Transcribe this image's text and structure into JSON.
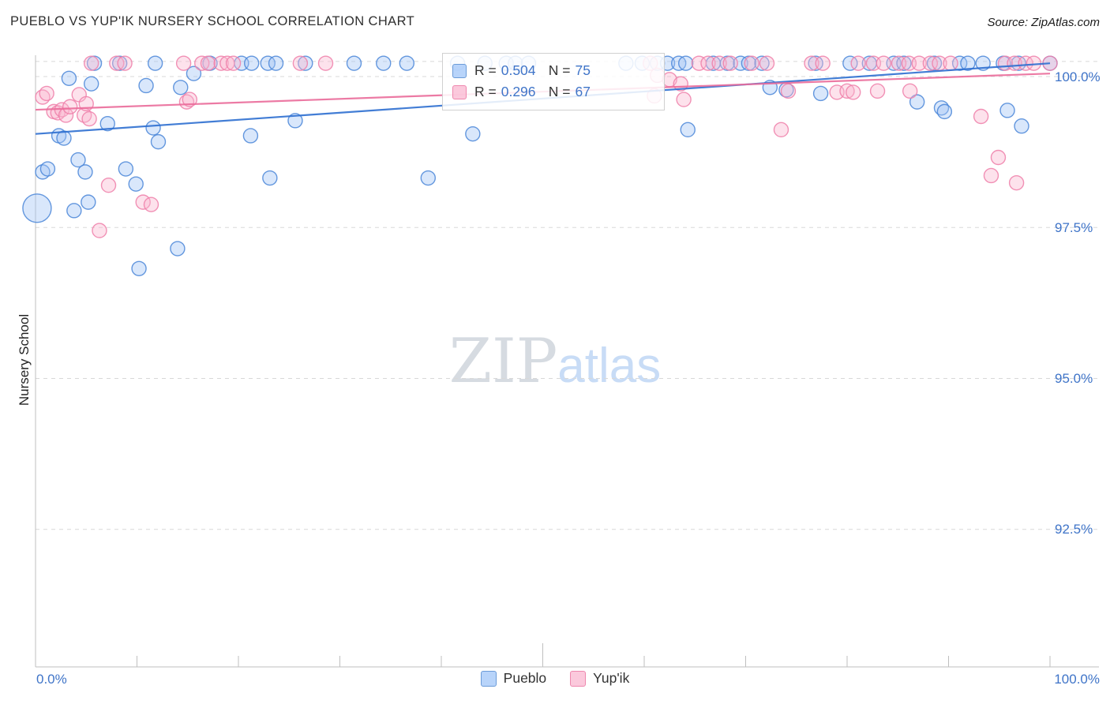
{
  "header": {
    "title": "PUEBLO VS YUP'IK NURSERY SCHOOL CORRELATION CHART",
    "source": "Source: ZipAtlas.com"
  },
  "axes": {
    "y_label": "Nursery School",
    "y_ticks": [
      "100.0%",
      "97.5%",
      "95.0%",
      "92.5%"
    ],
    "x_min_label": "0.0%",
    "x_max_label": "100.0%"
  },
  "legend_box": {
    "rows": [
      {
        "r_label": "R =",
        "r_value": "0.504",
        "n_label": "N =",
        "n_value": "75"
      },
      {
        "r_label": "R =",
        "r_value": "0.296",
        "n_label": "N =",
        "n_value": "67"
      }
    ]
  },
  "bottom_legend": {
    "pueblo": "Pueblo",
    "yupik": "Yup'ik"
  },
  "watermark": {
    "zip": "ZIP",
    "atlas": "atlas"
  },
  "colors": {
    "pueblo_fill": "#9fc3f5",
    "pueblo_stroke": "#4a86d8",
    "pueblo_line": "#2e6fd0",
    "yupik_fill": "#f9b6d0",
    "yupik_stroke": "#ee7fa9",
    "yupik_line": "#ea6c9a",
    "grid": "#d8d8d8",
    "axis": "#bfbfbf",
    "tick_label": "#3f74c8"
  },
  "chart_data": {
    "type": "scatter",
    "title": "PUEBLO VS YUP'IK NURSERY SCHOOL CORRELATION CHART",
    "xlabel": "",
    "ylabel": "Nursery School",
    "xlim": [
      0,
      100
    ],
    "ylim": [
      90.2,
      100.35
    ],
    "y_gridlines": [
      100.25,
      100.0,
      97.5,
      95.0,
      92.5
    ],
    "y_tick_values": [
      100.0,
      97.5,
      95.0,
      92.5
    ],
    "grid": "dashed-horizontal",
    "legend_position": "top-center",
    "series": [
      {
        "name": "Pueblo",
        "R": 0.504,
        "N": 75,
        "trend": {
          "x": [
            0,
            100
          ],
          "y": [
            99.05,
            100.22
          ]
        },
        "points": [
          [
            5.8,
            100.22
          ],
          [
            8.3,
            100.22
          ],
          [
            11.8,
            100.22
          ],
          [
            17.2,
            100.22
          ],
          [
            20.3,
            100.22
          ],
          [
            21.3,
            100.22
          ],
          [
            22.9,
            100.22
          ],
          [
            23.7,
            100.22
          ],
          [
            26.6,
            100.22
          ],
          [
            31.4,
            100.22
          ],
          [
            34.3,
            100.22
          ],
          [
            36.6,
            100.22
          ],
          [
            41.6,
            100.22
          ],
          [
            44.3,
            100.22
          ],
          [
            46.4,
            100.22
          ],
          [
            47.3,
            100.22
          ],
          [
            48.6,
            100.22
          ],
          [
            58.2,
            100.22
          ],
          [
            59.8,
            100.22
          ],
          [
            61.3,
            100.22
          ],
          [
            62.3,
            100.22
          ],
          [
            63.4,
            100.22
          ],
          [
            64.1,
            100.22
          ],
          [
            66.8,
            100.22
          ],
          [
            68.2,
            100.22
          ],
          [
            69.5,
            100.22
          ],
          [
            70.3,
            100.22
          ],
          [
            71.6,
            100.22
          ],
          [
            76.9,
            100.22
          ],
          [
            80.3,
            100.22
          ],
          [
            82.2,
            100.22
          ],
          [
            84.6,
            100.22
          ],
          [
            85.6,
            100.22
          ],
          [
            88.6,
            100.22
          ],
          [
            91.1,
            100.22
          ],
          [
            91.9,
            100.22
          ],
          [
            93.4,
            100.22
          ],
          [
            95.4,
            100.22
          ],
          [
            96.9,
            100.22
          ],
          [
            100.0,
            100.22
          ],
          [
            3.3,
            99.97
          ],
          [
            5.5,
            99.88
          ],
          [
            10.9,
            99.85
          ],
          [
            14.3,
            99.82
          ],
          [
            15.6,
            100.05
          ],
          [
            72.4,
            99.82
          ],
          [
            74.0,
            99.78
          ],
          [
            77.4,
            99.72
          ],
          [
            2.3,
            99.02
          ],
          [
            2.8,
            98.98
          ],
          [
            7.1,
            99.22
          ],
          [
            11.6,
            99.15
          ],
          [
            12.1,
            98.92
          ],
          [
            21.2,
            99.02
          ],
          [
            25.6,
            99.27
          ],
          [
            43.1,
            99.05
          ],
          [
            64.3,
            99.12
          ],
          [
            0.7,
            98.42
          ],
          [
            1.2,
            98.47
          ],
          [
            4.2,
            98.62
          ],
          [
            4.9,
            98.42
          ],
          [
            8.9,
            98.47
          ],
          [
            9.9,
            98.22
          ],
          [
            23.1,
            98.32
          ],
          [
            38.7,
            98.32
          ],
          [
            0.15,
            97.82,
            18
          ],
          [
            3.8,
            97.78
          ],
          [
            5.2,
            97.92
          ],
          [
            14.0,
            97.15
          ],
          [
            10.2,
            96.82
          ],
          [
            86.9,
            99.58
          ],
          [
            89.3,
            99.48
          ],
          [
            89.6,
            99.42
          ],
          [
            95.8,
            99.44
          ],
          [
            97.2,
            99.18
          ]
        ]
      },
      {
        "name": "Yup'ik",
        "R": 0.296,
        "N": 67,
        "trend": {
          "x": [
            0,
            100
          ],
          "y": [
            99.45,
            100.05
          ]
        },
        "points": [
          [
            5.5,
            100.22
          ],
          [
            8.0,
            100.22
          ],
          [
            8.8,
            100.22
          ],
          [
            14.6,
            100.22
          ],
          [
            16.4,
            100.22
          ],
          [
            17.0,
            100.22
          ],
          [
            18.3,
            100.22
          ],
          [
            18.9,
            100.22
          ],
          [
            19.5,
            100.22
          ],
          [
            26.1,
            100.22
          ],
          [
            28.6,
            100.22
          ],
          [
            60.6,
            100.22
          ],
          [
            65.4,
            100.22
          ],
          [
            66.3,
            100.22
          ],
          [
            67.4,
            100.22
          ],
          [
            68.5,
            100.22
          ],
          [
            70.6,
            100.22
          ],
          [
            72.1,
            100.22
          ],
          [
            76.5,
            100.22
          ],
          [
            77.6,
            100.22
          ],
          [
            81.1,
            100.22
          ],
          [
            82.6,
            100.22
          ],
          [
            83.6,
            100.22
          ],
          [
            85.1,
            100.22
          ],
          [
            86.1,
            100.22
          ],
          [
            87.1,
            100.22
          ],
          [
            88.2,
            100.22
          ],
          [
            89.1,
            100.22
          ],
          [
            90.2,
            100.22
          ],
          [
            95.6,
            100.22
          ],
          [
            96.5,
            100.22
          ],
          [
            97.6,
            100.22
          ],
          [
            98.4,
            100.22
          ],
          [
            100.0,
            100.22
          ],
          [
            0.7,
            99.66
          ],
          [
            1.1,
            99.72
          ],
          [
            1.8,
            99.42
          ],
          [
            2.2,
            99.4
          ],
          [
            2.6,
            99.45
          ],
          [
            3.0,
            99.36
          ],
          [
            3.4,
            99.5
          ],
          [
            4.3,
            99.7
          ],
          [
            4.8,
            99.36
          ],
          [
            5.0,
            99.55
          ],
          [
            5.3,
            99.3
          ],
          [
            6.3,
            97.45
          ],
          [
            7.2,
            98.2
          ],
          [
            10.6,
            97.92
          ],
          [
            11.4,
            97.88
          ],
          [
            14.9,
            99.58
          ],
          [
            15.2,
            99.62
          ],
          [
            61.0,
            99.68
          ],
          [
            61.3,
            100.02
          ],
          [
            62.5,
            99.95
          ],
          [
            63.6,
            99.88
          ],
          [
            63.9,
            99.62
          ],
          [
            73.5,
            99.12
          ],
          [
            74.2,
            99.76
          ],
          [
            79.0,
            99.74
          ],
          [
            80.0,
            99.76
          ],
          [
            80.6,
            99.74
          ],
          [
            83.0,
            99.76
          ],
          [
            86.2,
            99.76
          ],
          [
            93.2,
            99.34
          ],
          [
            94.9,
            98.66
          ],
          [
            94.2,
            98.36
          ],
          [
            96.7,
            98.24
          ]
        ]
      }
    ]
  }
}
